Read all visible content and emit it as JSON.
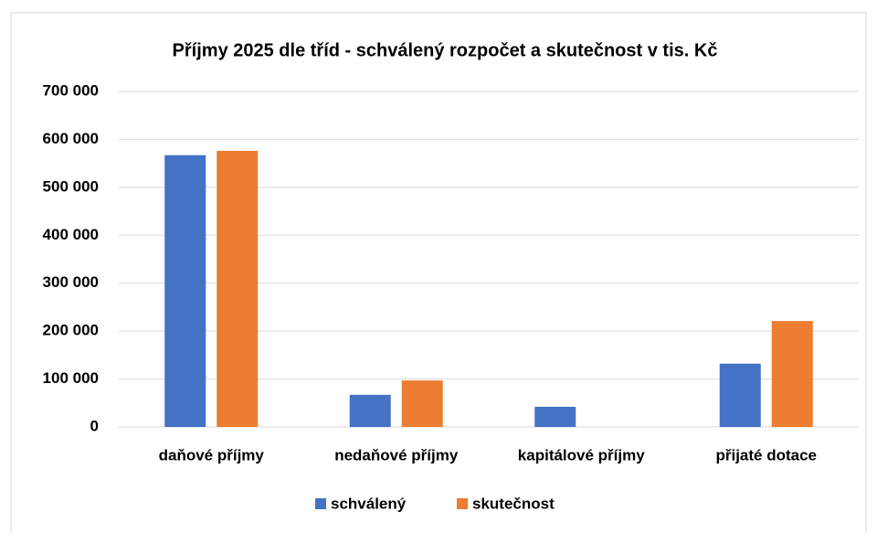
{
  "chart_data": {
    "type": "bar",
    "title": "Příjmy 2025 dle tříd - schválený rozpočet a skutečnost v tis. Kč",
    "categories": [
      "daňové příjmy",
      "nedaňové příjmy",
      "kapitálové příjmy",
      "přijaté dotace"
    ],
    "series": [
      {
        "name": "schválený",
        "color": "#4472c4",
        "values": [
          567000,
          67000,
          42000,
          132000
        ]
      },
      {
        "name": "skutečnost",
        "color": "#ed7d31",
        "values": [
          576000,
          97000,
          0,
          221000
        ]
      }
    ],
    "ylim": [
      0,
      700000
    ],
    "yticks": [
      0,
      {
        "value": 100000,
        "label": "100 000"
      },
      {
        "value": 200000,
        "label": "200 000"
      },
      {
        "value": 300000,
        "label": "300 000"
      },
      {
        "value": 400000,
        "label": "400 000"
      },
      {
        "value": 500000,
        "label": "500 000"
      },
      {
        "value": 600000,
        "label": "600 000"
      },
      {
        "value": 700000,
        "label": "700 000"
      }
    ],
    "grid": true,
    "legend": "bottom"
  }
}
